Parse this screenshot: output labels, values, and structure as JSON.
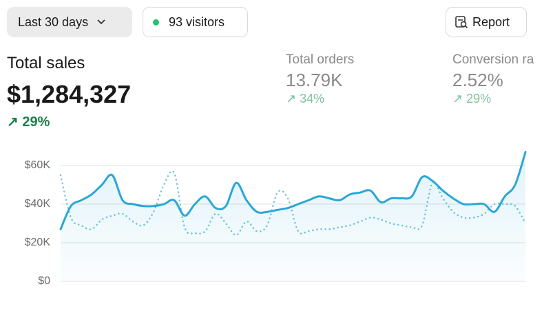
{
  "controls": {
    "date_range": "Last 30 days",
    "visitors": "93 visitors",
    "report": "Report"
  },
  "metrics": [
    {
      "label": "Total sales",
      "value": "$1,284,327",
      "change": "29%"
    },
    {
      "label": "Total orders",
      "value": "13.79K",
      "change": "34%"
    },
    {
      "label": "Conversion ra",
      "value": "2.52%",
      "change": "29%"
    }
  ],
  "chart_data": {
    "type": "line",
    "ylim": [
      0,
      70000
    ],
    "yticks": [
      {
        "value": 0,
        "label": "$0"
      },
      {
        "value": 20000,
        "label": "$20K"
      },
      {
        "value": 40000,
        "label": "$40K"
      },
      {
        "value": 60000,
        "label": "$60K"
      }
    ],
    "grid": true,
    "series": [
      {
        "color": "#2aa7d6",
        "style": "solid",
        "area": true,
        "values": [
          27000,
          39000,
          42000,
          45000,
          50000,
          55000,
          42000,
          40000,
          39000,
          39000,
          40000,
          42000,
          34000,
          40000,
          44000,
          38000,
          39000,
          51000,
          42000,
          36000,
          36000,
          37000,
          38000,
          40000,
          42000,
          44000,
          43000,
          42000,
          45000,
          46000,
          47000,
          41000,
          43000,
          43000,
          44000,
          54000,
          52000,
          47000,
          43000,
          40000,
          40000,
          40000,
          36000,
          44000,
          50000,
          67000
        ]
      },
      {
        "color": "#6cc6d8",
        "style": "dotted",
        "area": false,
        "values": [
          55000,
          33000,
          29000,
          27000,
          32000,
          34000,
          35000,
          31000,
          29000,
          36000,
          50000,
          56000,
          28000,
          25000,
          26000,
          35000,
          30000,
          24000,
          31000,
          26000,
          29000,
          46000,
          43000,
          26000,
          26000,
          27000,
          27000,
          28000,
          29000,
          31000,
          33000,
          32000,
          30000,
          29000,
          28000,
          29000,
          51000,
          43000,
          36000,
          33000,
          33000,
          35000,
          40000,
          40000,
          39000,
          30000
        ]
      }
    ]
  }
}
